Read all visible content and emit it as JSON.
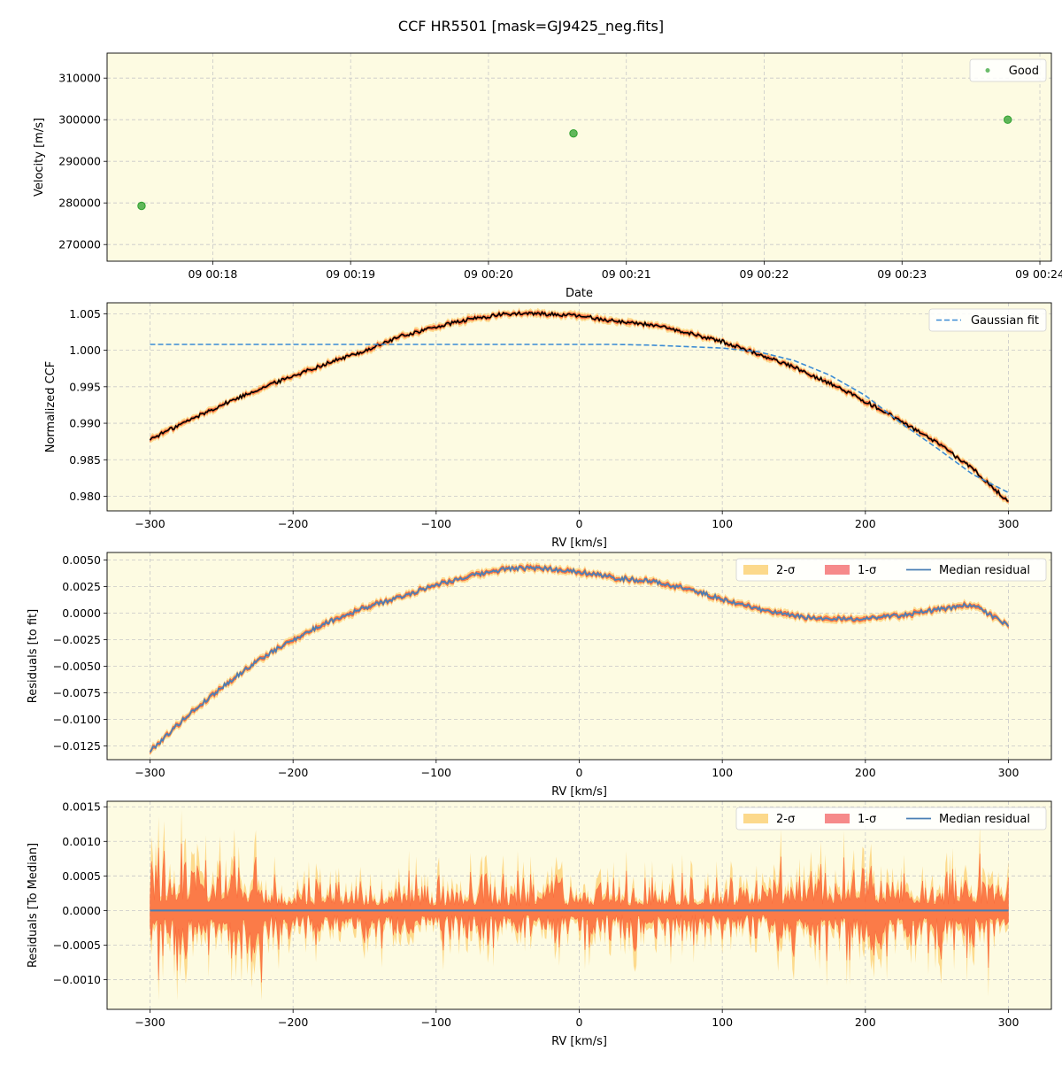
{
  "title": "CCF HR5501 [mask=GJ9425_neg.fits]",
  "colors": {
    "background": "#fdfbe2",
    "good": "#2ca02c",
    "ccf": "#000000",
    "band2": "#fcd277",
    "band1": "#fa6a3c",
    "median": "#4a7fb5",
    "gauss": "#3b8bd4",
    "grid": "#c8c8c8"
  },
  "chart_data": [
    {
      "type": "scatter",
      "xlabel": "Date",
      "ylabel": "Velocity [m/s]",
      "xlim": [
        "09 00:17:14",
        "09 00:24:05"
      ],
      "ylim": [
        266000,
        316000
      ],
      "xticks": [
        "09 00:18",
        "09 00:19",
        "09 00:20",
        "09 00:21",
        "09 00:22",
        "09 00:23",
        "09 00:24"
      ],
      "yticks": [
        270000,
        280000,
        290000,
        300000,
        310000
      ],
      "grid": true,
      "legend": {
        "position": "top-right",
        "entries": [
          "Good"
        ]
      },
      "series": [
        {
          "name": "Good",
          "points": [
            {
              "x": "09 00:17:29",
              "y": 279300
            },
            {
              "x": "09 00:20:37",
              "y": 296700
            },
            {
              "x": "09 00:23:46",
              "y": 300000
            }
          ]
        }
      ]
    },
    {
      "type": "line",
      "xlabel": "RV [km/s]",
      "ylabel": "Normalized CCF",
      "xlim": [
        -330,
        330
      ],
      "ylim": [
        0.978,
        1.0065
      ],
      "xticks": [
        -300,
        -200,
        -100,
        0,
        100,
        200,
        300
      ],
      "yticks": [
        0.98,
        0.985,
        0.99,
        0.995,
        1.0,
        1.005
      ],
      "ytick_labels": [
        "0.980",
        "0.985",
        "0.990",
        "0.995",
        "1.000",
        "1.005"
      ],
      "grid": true,
      "legend": {
        "position": "top-right",
        "entries": [
          "Gaussian fit"
        ]
      },
      "x": [
        -300,
        -275,
        -250,
        -225,
        -200,
        -175,
        -150,
        -125,
        -100,
        -75,
        -50,
        -25,
        0,
        25,
        50,
        75,
        100,
        125,
        150,
        175,
        200,
        225,
        250,
        275,
        300
      ],
      "series": [
        {
          "name": "",
          "values": [
            0.9878,
            0.9902,
            0.9925,
            0.9946,
            0.9965,
            0.9983,
            0.9999,
            1.0019,
            1.0032,
            1.0043,
            1.005,
            1.005,
            1.0047,
            1.004,
            1.0035,
            1.0024,
            1.0012,
            0.9995,
            0.9977,
            0.9955,
            0.993,
            0.9903,
            0.9873,
            0.9838,
            0.9792
          ]
        },
        {
          "name": "Gaussian fit",
          "values": [
            1.0008,
            1.0008,
            1.0008,
            1.0008,
            1.0008,
            1.0008,
            1.0008,
            1.0008,
            1.0008,
            1.0008,
            1.0008,
            1.0008,
            1.0008,
            1.0008,
            1.0007,
            1.0005,
            1.0003,
            0.9998,
            0.9986,
            0.9966,
            0.9938,
            0.99,
            0.9866,
            0.983,
            0.9805
          ]
        }
      ]
    },
    {
      "type": "line",
      "xlabel": "RV [km/s]",
      "ylabel": "Residuals [to fit]",
      "xlim": [
        -330,
        330
      ],
      "ylim": [
        -0.0138,
        0.0057
      ],
      "xticks": [
        -300,
        -200,
        -100,
        0,
        100,
        200,
        300
      ],
      "yticks": [
        -0.0125,
        -0.01,
        -0.0075,
        -0.005,
        -0.0025,
        0.0,
        0.0025,
        0.005
      ],
      "ytick_labels": [
        "−0.0125",
        "−0.0100",
        "−0.0075",
        "−0.0050",
        "−0.0025",
        "0.0000",
        "0.0025",
        "0.0050"
      ],
      "grid": true,
      "legend": {
        "position": "top-right",
        "entries": [
          "2-σ",
          "1-σ",
          "Median residual"
        ]
      },
      "x": [
        -300,
        -275,
        -250,
        -225,
        -200,
        -175,
        -150,
        -125,
        -100,
        -75,
        -50,
        -25,
        0,
        25,
        50,
        75,
        100,
        125,
        150,
        175,
        200,
        225,
        250,
        275,
        300
      ],
      "series": [
        {
          "name": "Median residual",
          "values": [
            -0.013,
            -0.0098,
            -0.007,
            -0.0045,
            -0.0025,
            -0.0008,
            0.0005,
            0.0015,
            0.0027,
            0.0035,
            0.0042,
            0.0042,
            0.0039,
            0.0033,
            0.003,
            0.0023,
            0.0013,
            0.0004,
            -0.0003,
            -0.0006,
            -0.0005,
            -0.0002,
            0.0003,
            0.0008,
            -0.0012
          ]
        }
      ]
    },
    {
      "type": "line",
      "xlabel": "RV [km/s]",
      "ylabel": "Residuals [To Median]",
      "xlim": [
        -330,
        330
      ],
      "ylim": [
        -0.00143,
        0.00158
      ],
      "xticks": [
        -300,
        -200,
        -100,
        0,
        100,
        200,
        300
      ],
      "yticks": [
        -0.001,
        -0.0005,
        0.0,
        0.0005,
        0.001,
        0.0015
      ],
      "ytick_labels": [
        "−0.0010",
        "−0.0005",
        "0.0000",
        "0.0005",
        "0.0010",
        "0.0015"
      ],
      "grid": true,
      "legend": {
        "position": "top-right",
        "entries": [
          "2-σ",
          "1-σ",
          "Median residual"
        ]
      },
      "x": [
        -300,
        300
      ],
      "series": [
        {
          "name": "Median residual",
          "values": [
            0.0,
            0.0
          ]
        }
      ],
      "band_extent": {
        "typical_1sigma": 0.0003,
        "max_2sigma": 0.0015,
        "min_2sigma": -0.0013
      }
    }
  ]
}
